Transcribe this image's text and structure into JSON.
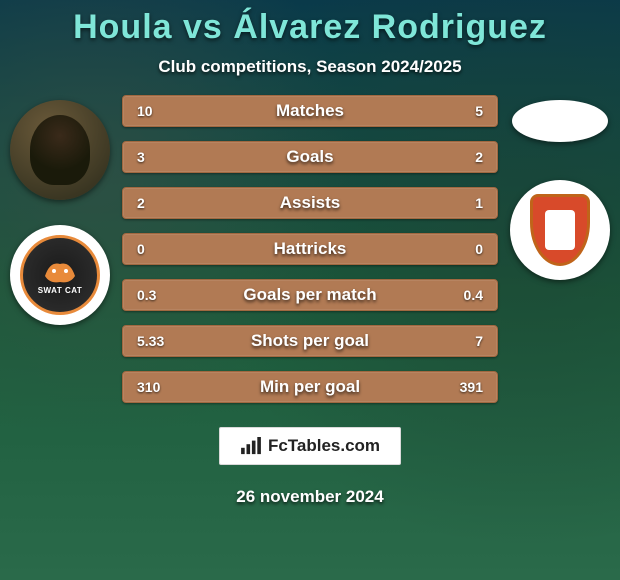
{
  "title": "Houla vs Álvarez Rodriguez",
  "subtitle": "Club competitions, Season 2024/2025",
  "date": "26 november 2024",
  "footer_brand": "FcTables.com",
  "p1_club_label": "SWAT CAT",
  "bar_color": "#b17a54",
  "bar_border": "#a06840",
  "background_gradient": [
    "#0a3a4a",
    "#1a5a3a",
    "#2a6a4a"
  ],
  "title_color": "#7fe6d8",
  "text_color": "#ffffff",
  "stats": [
    {
      "label": "Matches",
      "p1": "10",
      "p2": "5"
    },
    {
      "label": "Goals",
      "p1": "3",
      "p2": "2"
    },
    {
      "label": "Assists",
      "p1": "2",
      "p2": "1"
    },
    {
      "label": "Hattricks",
      "p1": "0",
      "p2": "0"
    },
    {
      "label": "Goals per match",
      "p1": "0.3",
      "p2": "0.4"
    },
    {
      "label": "Shots per goal",
      "p1": "5.33",
      "p2": "7"
    },
    {
      "label": "Min per goal",
      "p1": "310",
      "p2": "391"
    }
  ]
}
